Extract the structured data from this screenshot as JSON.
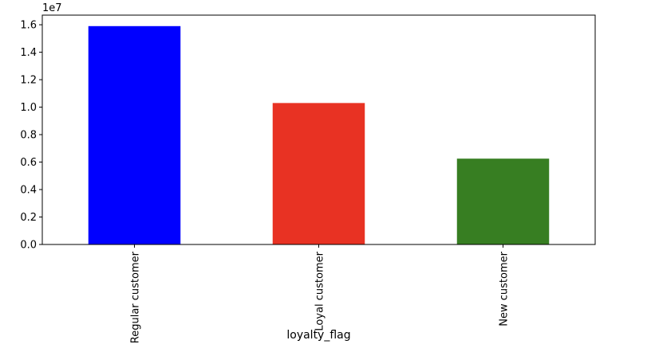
{
  "chart_data": {
    "type": "bar",
    "title": "",
    "xlabel": "loyalty_flag",
    "ylabel": "",
    "categories": [
      "Regular customer",
      "Loyal customer",
      "New customer"
    ],
    "values": [
      15900000,
      10300000,
      6250000
    ],
    "colors": [
      "#0000ff",
      "#e83223",
      "#377e22"
    ],
    "ylim": [
      0,
      16700000
    ],
    "y_scale_factor": 10000000,
    "y_offset_text": "1e7",
    "y_ticks": [
      0.0,
      0.2,
      0.4,
      0.6,
      0.8,
      1.0,
      1.2,
      1.4,
      1.6
    ],
    "y_tick_labels": [
      "0.0",
      "0.2",
      "0.4",
      "0.6",
      "0.8",
      "1.0",
      "1.2",
      "1.4",
      "1.6"
    ],
    "grid": false,
    "legend": "none",
    "x_label_rotation": "vertical"
  }
}
